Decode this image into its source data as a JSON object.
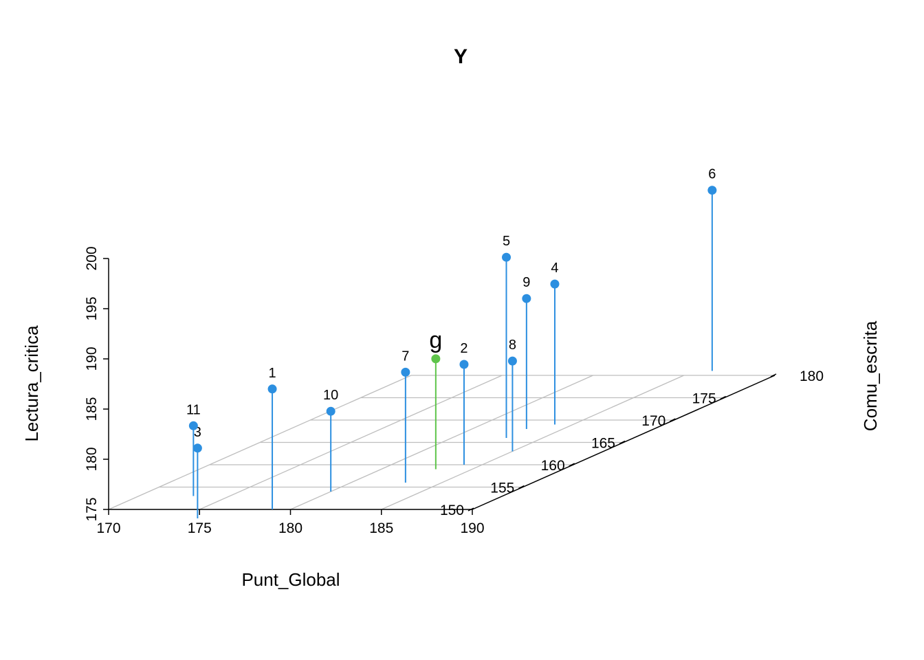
{
  "chart_data": {
    "type": "scatter3d",
    "title": "Y",
    "xlabel": "Punt_Global",
    "ylabel": "Comu_escrita",
    "zlabel": "Lectura_critica",
    "xlim": [
      170,
      190
    ],
    "ylim": [
      150,
      180
    ],
    "zlim": [
      175,
      200
    ],
    "x_ticks": [
      "170",
      "175",
      "180",
      "185",
      "190"
    ],
    "y_ticks": [
      "150",
      "155",
      "160",
      "165",
      "170",
      "175",
      "180"
    ],
    "z_ticks": [
      "175",
      "180",
      "185",
      "190",
      "195",
      "200"
    ],
    "grid": true,
    "type_of_drop_lines": "vertical",
    "series_color": "#2c8fe0",
    "highlight_color": "#5ec44a",
    "points": [
      {
        "label": "1",
        "x": 179,
        "y": 150,
        "z": 187,
        "highlight": false
      },
      {
        "label": "2",
        "x": 184,
        "y": 160,
        "z": 185,
        "highlight": false
      },
      {
        "label": "3",
        "x": 176,
        "y": 148,
        "z": 182,
        "highlight": false
      },
      {
        "label": "4",
        "x": 184,
        "y": 169,
        "z": 189,
        "highlight": false
      },
      {
        "label": "5",
        "x": 183,
        "y": 166,
        "z": 193,
        "highlight": false
      },
      {
        "label": "6",
        "x": 186,
        "y": 181,
        "z": 193,
        "highlight": false
      },
      {
        "label": "7",
        "x": 183,
        "y": 156,
        "z": 186,
        "highlight": false
      },
      {
        "label": "8",
        "x": 185,
        "y": 163,
        "z": 184,
        "highlight": false
      },
      {
        "label": "9",
        "x": 183,
        "y": 168,
        "z": 188,
        "highlight": false
      },
      {
        "label": "10",
        "x": 180,
        "y": 154,
        "z": 183,
        "highlight": false
      },
      {
        "label": "11",
        "x": 173,
        "y": 153,
        "z": 182,
        "highlight": false
      },
      {
        "label": "g",
        "x": 183,
        "y": 159,
        "z": 186,
        "highlight": true
      }
    ]
  }
}
